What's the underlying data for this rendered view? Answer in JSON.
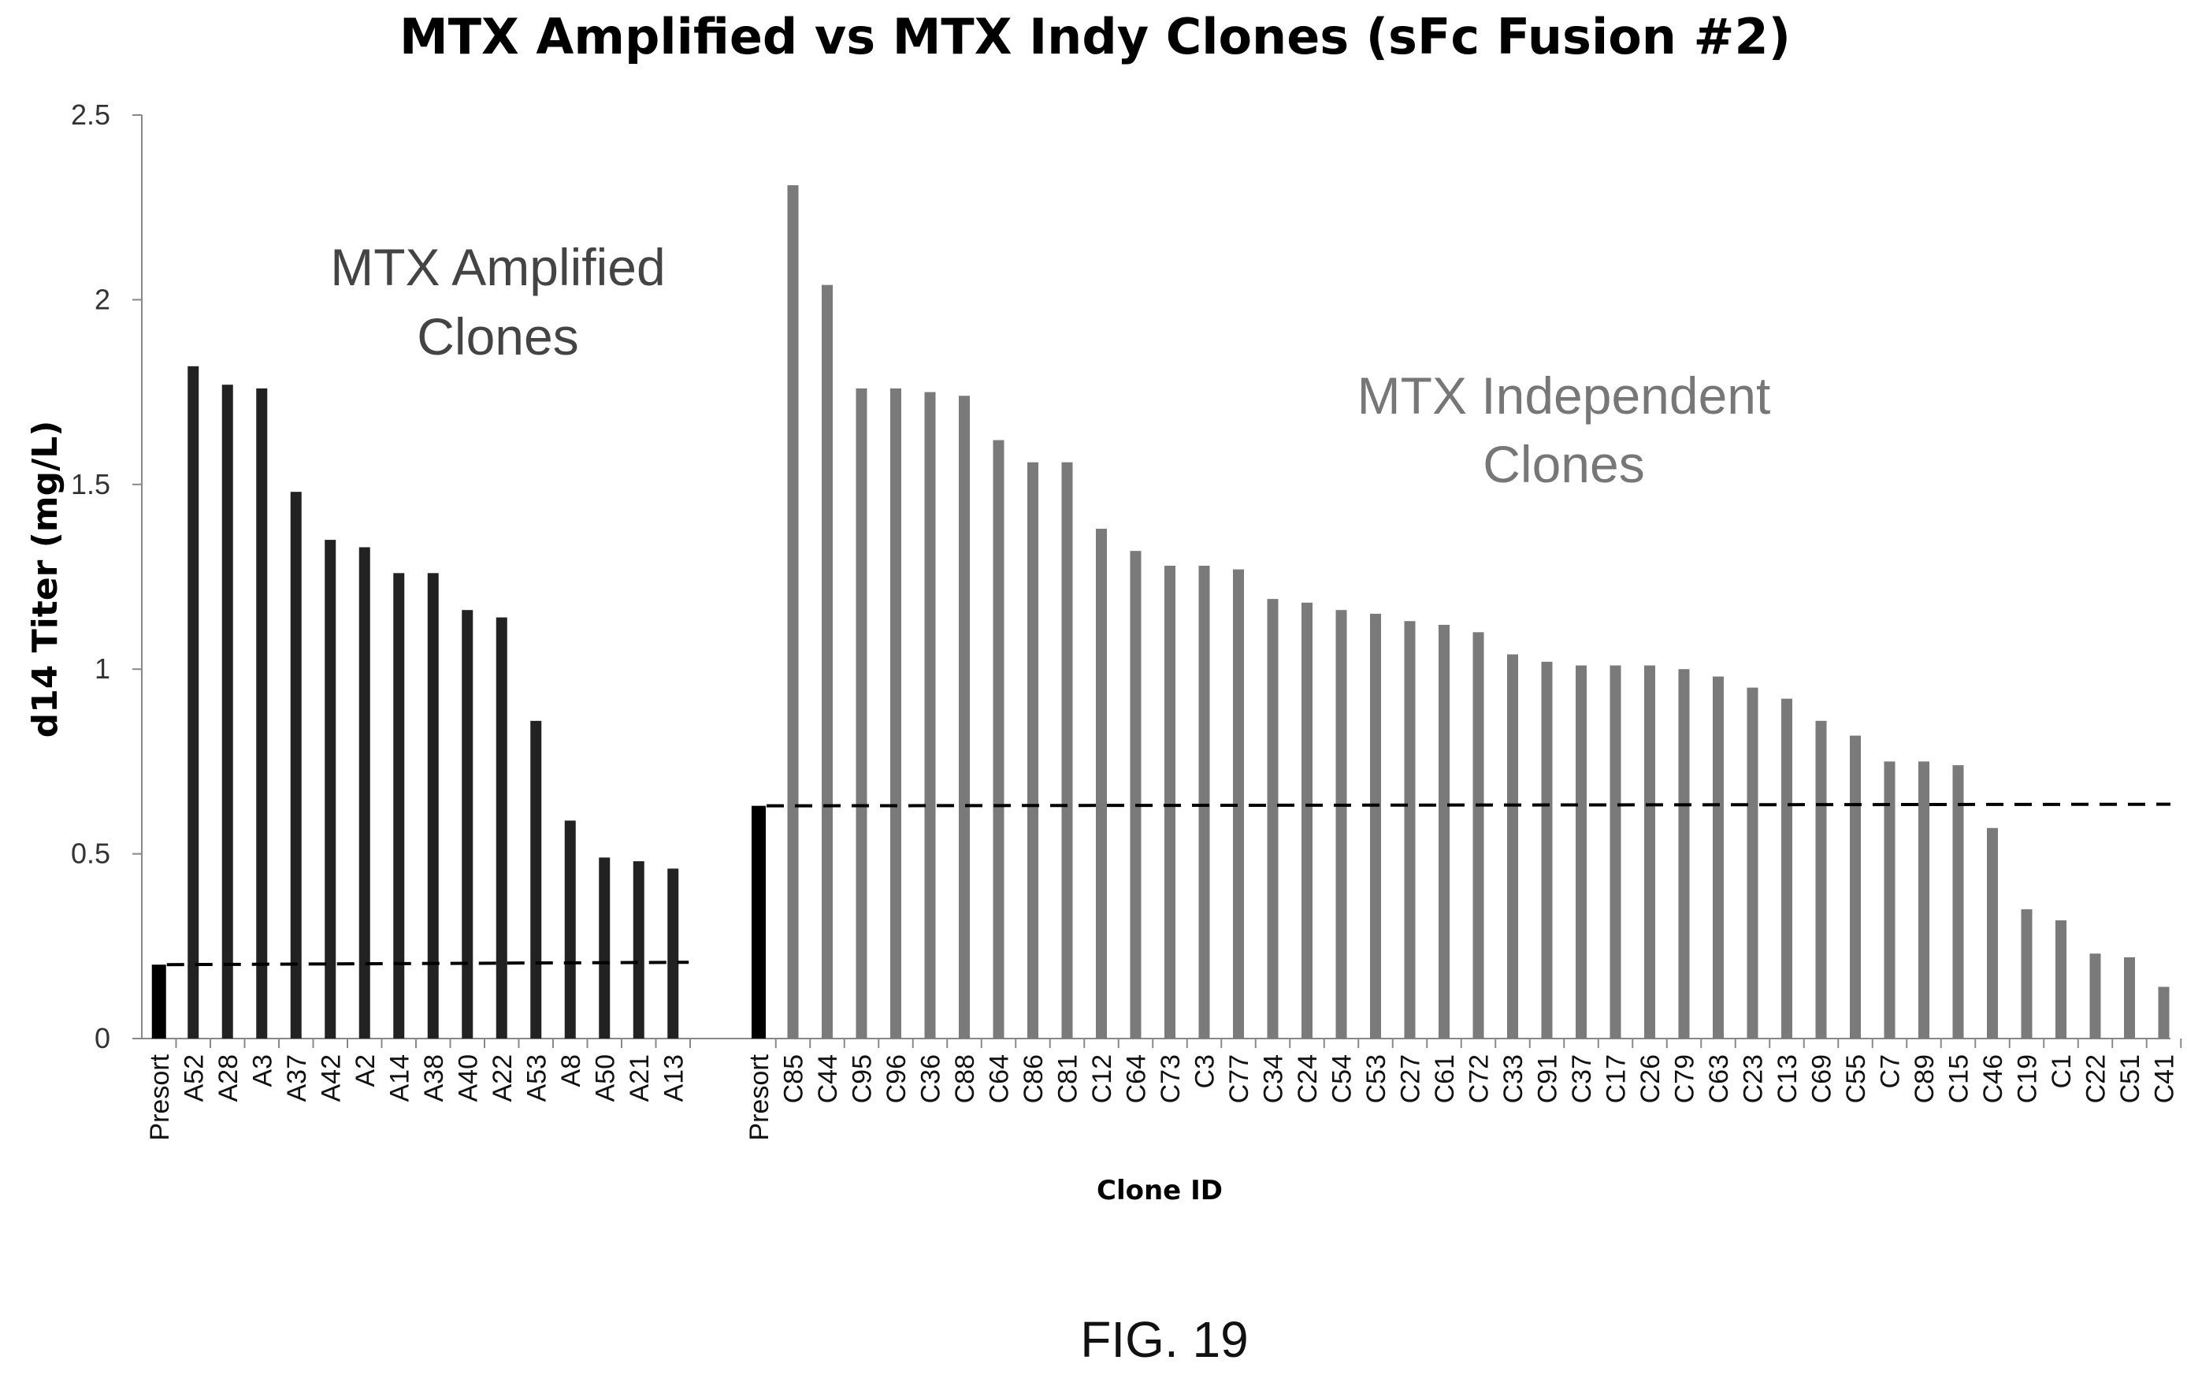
{
  "chart_data": {
    "type": "bar",
    "title": "MTX Amplified vs MTX Indy Clones (sFc Fusion #2)",
    "xlabel": "Clone ID",
    "ylabel": "d14 Titer (mg/L)",
    "ylim": [
      0,
      2.5
    ],
    "yticks": [
      "0",
      "0.5",
      "1",
      "1.5",
      "2",
      "2.5"
    ],
    "grid": false,
    "colors": {
      "presort": "#000000",
      "amplified": "#222222",
      "independent": "#7a7a7a",
      "axis": "#888888"
    },
    "groups": [
      {
        "name": "MTX Amplified Clones",
        "label_lines": [
          "MTX Amplified",
          "Clones"
        ],
        "categories": [
          "Presort",
          "A52",
          "A28",
          "A3",
          "A37",
          "A42",
          "A2",
          "A14",
          "A38",
          "A40",
          "A22",
          "A53",
          "A8",
          "A50",
          "A21",
          "A13"
        ],
        "values": [
          0.2,
          1.82,
          1.77,
          1.76,
          1.48,
          1.35,
          1.33,
          1.26,
          1.26,
          1.16,
          1.14,
          0.86,
          0.59,
          0.49,
          0.48,
          0.46
        ],
        "presort_line": 0.2
      },
      {
        "name": "MTX Independent Clones",
        "label_lines": [
          "MTX Independent",
          "Clones"
        ],
        "categories": [
          "Presort",
          "C85",
          "C44",
          "C95",
          "C96",
          "C36",
          "C88",
          "C64",
          "C86",
          "C81",
          "C12",
          "C64",
          "C73",
          "C3",
          "C77",
          "C34",
          "C24",
          "C54",
          "C53",
          "C27",
          "C61",
          "C72",
          "C33",
          "C91",
          "C37",
          "C17",
          "C26",
          "C79",
          "C63",
          "C23",
          "C13",
          "C69",
          "C55",
          "C7",
          "C89",
          "C15",
          "C46",
          "C19",
          "C1",
          "C22",
          "C51",
          "C41"
        ],
        "values": [
          0.63,
          2.31,
          2.04,
          1.76,
          1.76,
          1.75,
          1.74,
          1.62,
          1.56,
          1.56,
          1.38,
          1.32,
          1.28,
          1.28,
          1.27,
          1.19,
          1.18,
          1.16,
          1.15,
          1.13,
          1.12,
          1.1,
          1.04,
          1.02,
          1.01,
          1.01,
          1.01,
          1.0,
          0.98,
          0.95,
          0.92,
          0.86,
          0.82,
          0.75,
          0.75,
          0.74,
          0.57,
          0.35,
          0.32,
          0.23,
          0.22,
          0.14
        ],
        "presort_line": 0.63
      }
    ]
  },
  "figure_caption": "FIG. 19"
}
